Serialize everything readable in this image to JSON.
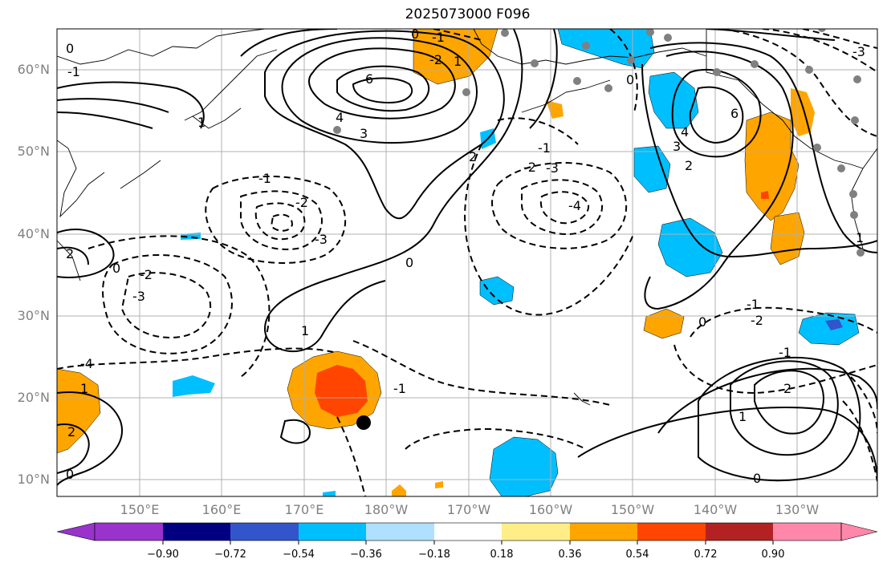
{
  "title": "2025073000 F096",
  "lat_labels": [
    "60°N",
    "50°N",
    "40°N",
    "30°N",
    "20°N",
    "10°N"
  ],
  "lon_labels": [
    "150°E",
    "160°E",
    "170°E",
    "180°W",
    "170°W",
    "160°W",
    "150°W",
    "140°W",
    "130°W"
  ],
  "colorbar": {
    "ticks": [
      "−0.90",
      "−0.72",
      "−0.54",
      "−0.36",
      "−0.18",
      "0.18",
      "0.36",
      "0.54",
      "0.72",
      "0.90"
    ],
    "colors": [
      "#9933cc",
      "#000080",
      "#3355cc",
      "#00bfff",
      "#b0e0ff",
      "#ffffff",
      "#ffee88",
      "#ffa500",
      "#ff4500",
      "#b22222",
      "#ff88aa"
    ]
  },
  "contour_labels": [
    "6",
    "4",
    "3",
    "2",
    "1",
    "0",
    "-1",
    "-2",
    "-3",
    "-4",
    "6",
    "4",
    "3",
    "2",
    "1",
    "0",
    "-1",
    "-2",
    "-3",
    "0",
    "-1",
    "-2",
    "1",
    "0",
    "-1",
    "2",
    "-2",
    "-3",
    "-4",
    "0",
    "1",
    "2",
    "0",
    "-1",
    "2",
    "1",
    "0",
    "-1",
    "-2",
    "0",
    "1",
    "-1",
    "-3"
  ],
  "colors": {
    "axis": "#808080",
    "text": "#000000",
    "grid": "#b0b0b0"
  }
}
